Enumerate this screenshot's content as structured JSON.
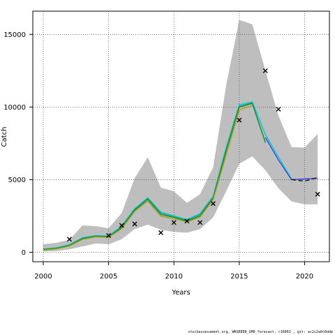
{
  "chart_data": {
    "type": "line",
    "xlabel": "Years",
    "ylabel": "Catch",
    "xlim": [
      1999.2,
      2021.9
    ],
    "ylim": [
      -650,
      16600
    ],
    "x_ticks": [
      2000,
      2005,
      2010,
      2015,
      2020
    ],
    "y_ticks": [
      0,
      5000,
      10000,
      15000
    ],
    "grid": "dotted at tick marks",
    "band": {
      "color": "#bebebe",
      "x": [
        2000,
        2001,
        2002,
        2003,
        2004,
        2005,
        2006,
        2007,
        2008,
        2009,
        2010,
        2011,
        2012,
        2013,
        2014,
        2015,
        2016,
        2017,
        2018,
        2019,
        2020,
        2021
      ],
      "upper": [
        550,
        650,
        850,
        1850,
        1800,
        1650,
        2700,
        5100,
        6550,
        4450,
        4200,
        3400,
        4000,
        5850,
        11500,
        16000,
        15700,
        12500,
        9400,
        7250,
        7200,
        8150
      ],
      "lower": [
        50,
        80,
        200,
        400,
        600,
        550,
        900,
        1600,
        1900,
        1550,
        1400,
        1350,
        1600,
        2400,
        4200,
        6100,
        6600,
        5650,
        4400,
        3500,
        3300,
        3300
      ]
    },
    "series": [
      {
        "color": "#00cfcf",
        "width": 1.6,
        "x": [
          2000,
          2001,
          2002,
          2003,
          2004,
          2005,
          2006,
          2007,
          2008,
          2009,
          2010,
          2011,
          2012,
          2013,
          2014,
          2015,
          2016,
          2017,
          2018,
          2019
        ],
        "values": [
          220,
          300,
          520,
          1000,
          1150,
          1120,
          1800,
          3000,
          3750,
          2750,
          2500,
          2250,
          2650,
          3850,
          7200,
          10150,
          10350,
          8100,
          6550,
          5050
        ]
      },
      {
        "color": "#2d2df0",
        "width": 1.2,
        "x": [
          2017,
          2018,
          2019,
          2020,
          2021
        ],
        "values": [
          7900,
          6350,
          5000,
          5050,
          5100
        ]
      },
      {
        "color": "#1f9fa0",
        "width": 1.2,
        "x": [
          2000,
          2001,
          2002,
          2003,
          2004,
          2005,
          2006,
          2007,
          2008,
          2009,
          2010,
          2011,
          2012,
          2013,
          2014,
          2015,
          2016
        ],
        "values": [
          200,
          280,
          490,
          960,
          1120,
          1090,
          1750,
          2950,
          3700,
          2700,
          2450,
          2200,
          2600,
          3800,
          7100,
          10050,
          10300
        ]
      },
      {
        "color": "#2e8b2e",
        "width": 1.6,
        "x": [
          2000,
          2001,
          2002,
          2003,
          2004,
          2005,
          2006,
          2007,
          2008,
          2009,
          2010,
          2011,
          2012,
          2013,
          2014,
          2015,
          2016,
          2017
        ],
        "values": [
          180,
          260,
          460,
          930,
          1100,
          1060,
          1700,
          2900,
          3650,
          2600,
          2400,
          2150,
          2500,
          3700,
          7000,
          10000,
          10250,
          7550
        ]
      },
      {
        "color": "#a8a000",
        "width": 1.2,
        "x": [
          2000,
          2001,
          2002,
          2003,
          2004,
          2005,
          2006,
          2007,
          2008,
          2009,
          2010,
          2011,
          2012,
          2013,
          2014,
          2015,
          2016
        ],
        "values": [
          150,
          230,
          420,
          880,
          1060,
          1020,
          1620,
          2820,
          3520,
          2480,
          2300,
          2080,
          2420,
          3620,
          6700,
          9800,
          10100
        ]
      },
      {
        "color": "#000000",
        "width": 1.3,
        "dash": "6,4",
        "x": [
          2019,
          2020,
          2021
        ],
        "values": [
          5000,
          4900,
          5150
        ]
      }
    ],
    "observations": {
      "marker": "x",
      "x": [
        2002,
        2005,
        2006,
        2007,
        2009,
        2010,
        2011,
        2012,
        2013,
        2015,
        2017,
        2018,
        2021
      ],
      "values": [
        900,
        1150,
        1850,
        1950,
        1350,
        2050,
        2150,
        2050,
        3350,
        9100,
        12500,
        9850,
        4000
      ]
    }
  },
  "footer_text": "stockassessment.org, WKGREEN_GMO_forecast, r16863 , git: ec2c2a0c6dde"
}
